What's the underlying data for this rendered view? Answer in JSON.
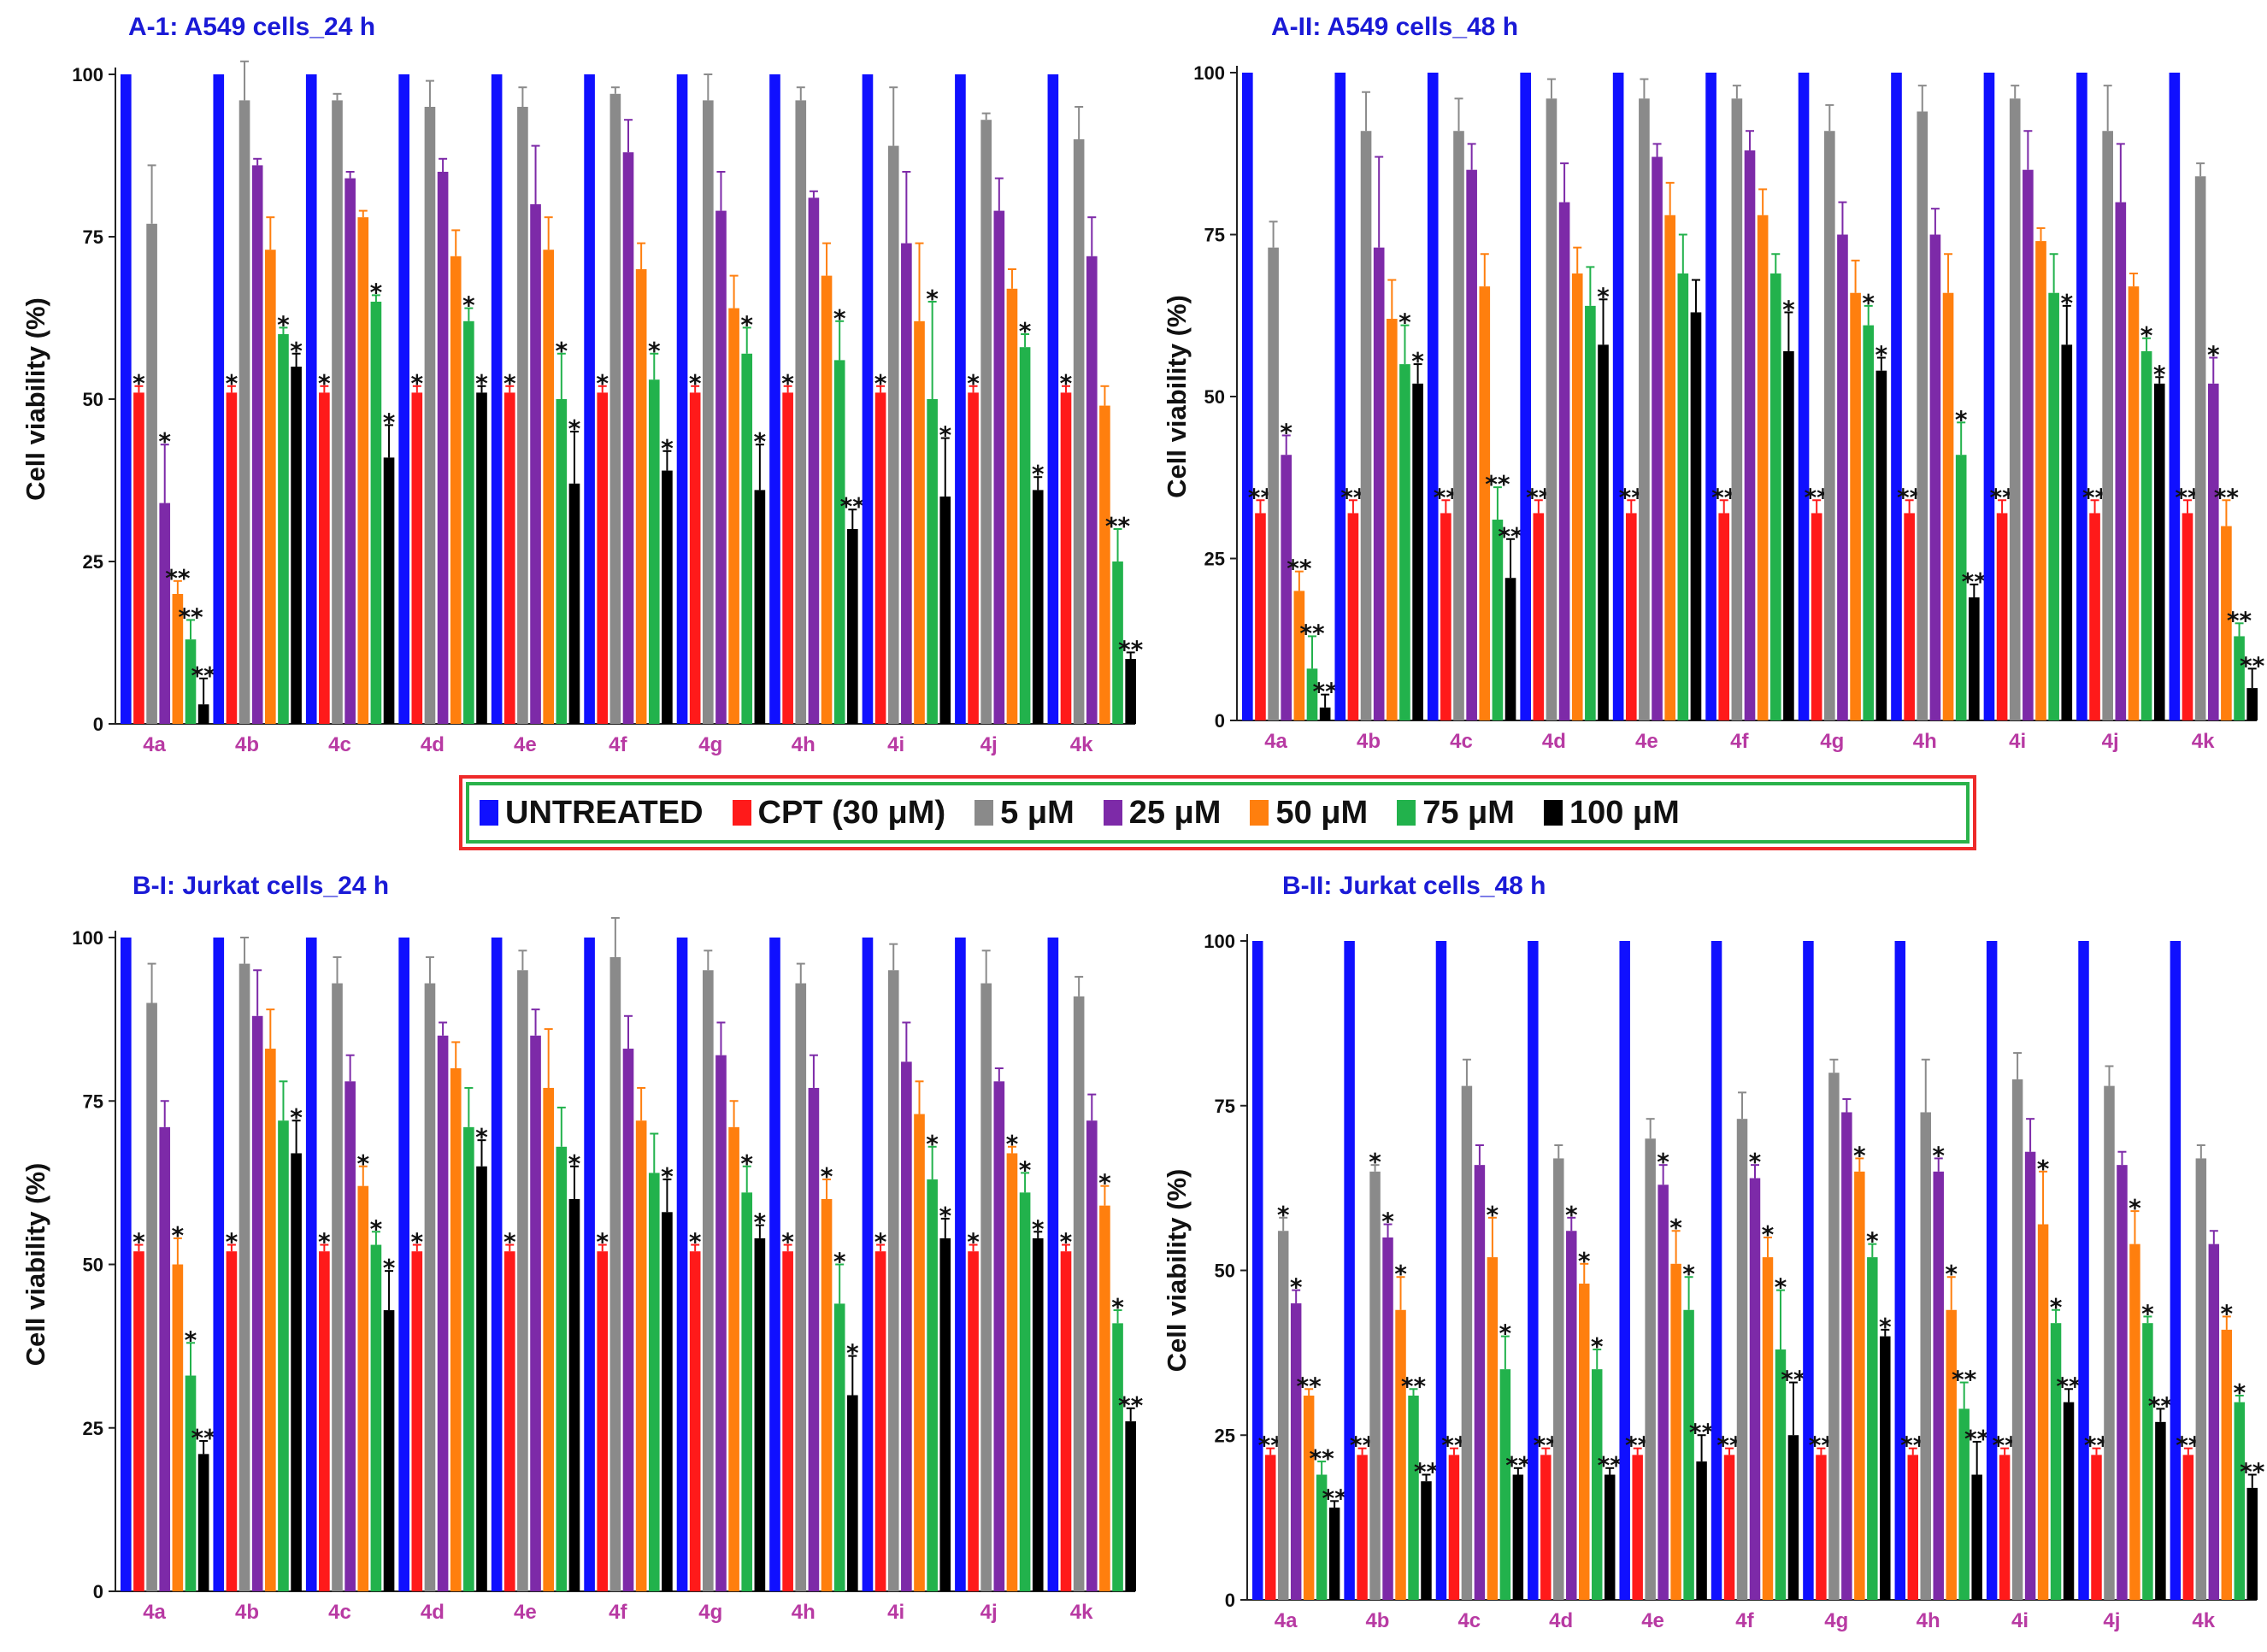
{
  "legend": {
    "items": [
      {
        "label": "UNTREATED",
        "color": "#1010ff"
      },
      {
        "label": "CPT (30 μM)",
        "color": "#ff1a1a"
      },
      {
        "label": "5 μM",
        "color": "#8a8a8a"
      },
      {
        "label": "25 μM",
        "color": "#7d2aa8"
      },
      {
        "label": "50 μM",
        "color": "#ff7f0e"
      },
      {
        "label": "75 μM",
        "color": "#22b24c"
      },
      {
        "label": "100 μM",
        "color": "#000000"
      }
    ]
  },
  "chart_data": [
    {
      "type": "bar",
      "title": "A-1: A549 cells_24 h",
      "ylabel": "Cell viability (%)",
      "ylim": [
        0,
        100
      ],
      "yticks": [
        0,
        25,
        50,
        75,
        100
      ],
      "categories": [
        "4a",
        "4b",
        "4c",
        "4d",
        "4e",
        "4f",
        "4g",
        "4h",
        "4i",
        "4j",
        "4k"
      ],
      "series": [
        {
          "name": "UNTREATED",
          "values": [
            100,
            100,
            100,
            100,
            100,
            100,
            100,
            100,
            100,
            100,
            100
          ]
        },
        {
          "name": "CPT (30 μM)",
          "values": [
            51,
            51,
            51,
            51,
            51,
            51,
            51,
            51,
            51,
            51,
            51
          ],
          "errors": [
            1,
            1,
            1,
            1,
            1,
            1,
            1,
            1,
            1,
            1,
            1
          ],
          "marks": [
            "*",
            "*",
            "*",
            "*",
            "*",
            "*",
            "*",
            "*",
            "*",
            "*",
            "*"
          ]
        },
        {
          "name": "5 μM",
          "values": [
            77,
            96,
            96,
            95,
            95,
            97,
            96,
            96,
            89,
            93,
            90
          ],
          "errors": [
            9,
            6,
            1,
            4,
            3,
            1,
            4,
            2,
            9,
            1,
            5
          ],
          "marks": [
            "",
            "",
            "",
            "",
            "",
            "",
            "",
            "",
            "",
            "",
            ""
          ]
        },
        {
          "name": "25 μM",
          "values": [
            34,
            86,
            84,
            85,
            80,
            88,
            79,
            81,
            74,
            79,
            72
          ],
          "errors": [
            9,
            1,
            1,
            2,
            9,
            5,
            6,
            1,
            11,
            5,
            6
          ],
          "marks": [
            "*",
            "",
            "",
            "",
            "",
            "",
            "",
            "",
            "",
            "",
            ""
          ]
        },
        {
          "name": "50 μM",
          "values": [
            20,
            73,
            78,
            72,
            73,
            70,
            64,
            69,
            62,
            67,
            49
          ],
          "errors": [
            2,
            5,
            1,
            4,
            5,
            4,
            5,
            5,
            12,
            3,
            3
          ],
          "marks": [
            "**",
            "",
            "",
            "",
            "",
            "",
            "",
            "",
            "",
            "",
            ""
          ]
        },
        {
          "name": "75 μM",
          "values": [
            13,
            60,
            65,
            62,
            50,
            53,
            57,
            56,
            50,
            58,
            25
          ],
          "errors": [
            3,
            1,
            1,
            2,
            7,
            4,
            4,
            6,
            15,
            2,
            5
          ],
          "marks": [
            "**",
            "*",
            "*",
            "*",
            "*",
            "*",
            "*",
            "*",
            "*",
            "*",
            "**"
          ]
        },
        {
          "name": "100 μM",
          "values": [
            3,
            55,
            41,
            51,
            37,
            39,
            36,
            30,
            35,
            36,
            10
          ],
          "errors": [
            4,
            2,
            5,
            1,
            8,
            3,
            7,
            3,
            9,
            2,
            1
          ],
          "marks": [
            "**",
            "*",
            "*",
            "*",
            "*",
            "*",
            "*",
            "**",
            "*",
            "*",
            "**"
          ]
        }
      ]
    },
    {
      "type": "bar",
      "title": "A-II: A549 cells_48 h",
      "ylabel": "Cell viability (%)",
      "ylim": [
        0,
        100
      ],
      "yticks": [
        0,
        25,
        50,
        75,
        100
      ],
      "categories": [
        "4a",
        "4b",
        "4c",
        "4d",
        "4e",
        "4f",
        "4g",
        "4h",
        "4i",
        "4j",
        "4k"
      ],
      "series": [
        {
          "name": "UNTREATED",
          "values": [
            100,
            100,
            100,
            100,
            100,
            100,
            100,
            100,
            100,
            100,
            100
          ]
        },
        {
          "name": "CPT (30 μM)",
          "values": [
            32,
            32,
            32,
            32,
            32,
            32,
            32,
            32,
            32,
            32,
            32
          ],
          "errors": [
            2,
            2,
            2,
            2,
            2,
            2,
            2,
            2,
            2,
            2,
            2
          ],
          "marks": [
            "**",
            "**",
            "**",
            "**",
            "**",
            "**",
            "**",
            "**",
            "**",
            "**",
            "**"
          ]
        },
        {
          "name": "5 μM",
          "values": [
            73,
            91,
            91,
            96,
            96,
            96,
            91,
            94,
            96,
            91,
            84
          ],
          "errors": [
            4,
            6,
            5,
            3,
            3,
            2,
            4,
            4,
            2,
            7,
            2
          ],
          "marks": [
            "",
            "",
            "",
            "",
            "",
            "",
            "",
            "",
            "",
            "",
            ""
          ]
        },
        {
          "name": "25 μM",
          "values": [
            41,
            73,
            85,
            80,
            87,
            88,
            75,
            75,
            85,
            80,
            52
          ],
          "errors": [
            3,
            14,
            4,
            6,
            2,
            3,
            5,
            4,
            6,
            9,
            4
          ],
          "marks": [
            "*",
            "",
            "",
            "",
            "",
            "",
            "",
            "",
            "",
            "",
            "*"
          ]
        },
        {
          "name": "50 μM",
          "values": [
            20,
            62,
            67,
            69,
            78,
            78,
            66,
            66,
            74,
            67,
            30
          ],
          "errors": [
            3,
            6,
            5,
            4,
            5,
            4,
            5,
            6,
            2,
            2,
            4
          ],
          "marks": [
            "**",
            "",
            "",
            "",
            "",
            "",
            "",
            "",
            "",
            "",
            "**"
          ]
        },
        {
          "name": "75 μM",
          "values": [
            8,
            55,
            31,
            64,
            69,
            69,
            61,
            41,
            66,
            57,
            13
          ],
          "errors": [
            5,
            6,
            5,
            6,
            6,
            3,
            3,
            5,
            6,
            2,
            2
          ],
          "marks": [
            "**",
            "*",
            "**",
            "",
            "",
            "",
            "*",
            "*",
            "",
            "*",
            "**"
          ]
        },
        {
          "name": "100 μM",
          "values": [
            2,
            52,
            22,
            58,
            63,
            57,
            54,
            19,
            58,
            52,
            5
          ],
          "errors": [
            2,
            3,
            6,
            7,
            5,
            6,
            2,
            2,
            6,
            1,
            3
          ],
          "marks": [
            "**",
            "*",
            "**",
            "*",
            "",
            "*",
            "*",
            "**",
            "*",
            "*",
            "**"
          ]
        }
      ]
    },
    {
      "type": "bar",
      "title": "B-I: Jurkat cells_24 h",
      "ylabel": "Cell viability (%)",
      "ylim": [
        0,
        100
      ],
      "yticks": [
        0,
        25,
        50,
        75,
        100
      ],
      "categories": [
        "4a",
        "4b",
        "4c",
        "4d",
        "4e",
        "4f",
        "4g",
        "4h",
        "4i",
        "4j",
        "4k"
      ],
      "series": [
        {
          "name": "UNTREATED",
          "values": [
            100,
            100,
            100,
            100,
            100,
            100,
            100,
            100,
            100,
            100,
            100
          ]
        },
        {
          "name": "CPT (30 μM)",
          "values": [
            52,
            52,
            52,
            52,
            52,
            52,
            52,
            52,
            52,
            52,
            52
          ],
          "errors": [
            1,
            1,
            1,
            1,
            1,
            1,
            1,
            1,
            1,
            1,
            1
          ],
          "marks": [
            "*",
            "*",
            "*",
            "*",
            "*",
            "*",
            "*",
            "*",
            "*",
            "*",
            "*"
          ]
        },
        {
          "name": "5 μM",
          "values": [
            90,
            96,
            93,
            93,
            95,
            97,
            95,
            93,
            95,
            93,
            91
          ],
          "errors": [
            6,
            4,
            4,
            4,
            3,
            6,
            3,
            3,
            4,
            5,
            3
          ],
          "marks": [
            "",
            "",
            "",
            "",
            "",
            "",
            "",
            "",
            "",
            "",
            ""
          ]
        },
        {
          "name": "25 μM",
          "values": [
            71,
            88,
            78,
            85,
            85,
            83,
            82,
            77,
            81,
            78,
            72
          ],
          "errors": [
            4,
            7,
            4,
            2,
            4,
            5,
            5,
            5,
            6,
            2,
            4
          ],
          "marks": [
            "",
            "",
            "",
            "",
            "",
            "",
            "",
            "",
            "",
            "",
            ""
          ]
        },
        {
          "name": "50 μM",
          "values": [
            50,
            83,
            62,
            80,
            77,
            72,
            71,
            60,
            73,
            67,
            59
          ],
          "errors": [
            4,
            6,
            3,
            4,
            9,
            5,
            4,
            3,
            5,
            1,
            3
          ],
          "marks": [
            "*",
            "",
            "*",
            "",
            "",
            "",
            "",
            "*",
            "",
            "*",
            "*"
          ]
        },
        {
          "name": "75 μM",
          "values": [
            33,
            72,
            53,
            71,
            68,
            64,
            61,
            44,
            63,
            61,
            41
          ],
          "errors": [
            5,
            6,
            2,
            6,
            6,
            6,
            4,
            6,
            5,
            3,
            2
          ],
          "marks": [
            "*",
            "",
            "*",
            "",
            "",
            "",
            "*",
            "*",
            "*",
            "*",
            "*"
          ]
        },
        {
          "name": "100 μM",
          "values": [
            21,
            67,
            43,
            65,
            60,
            58,
            54,
            30,
            54,
            54,
            26
          ],
          "errors": [
            2,
            5,
            6,
            4,
            5,
            5,
            2,
            6,
            3,
            1,
            2
          ],
          "marks": [
            "**",
            "*",
            "*",
            "*",
            "*",
            "*",
            "*",
            "*",
            "*",
            "*",
            "**"
          ]
        }
      ]
    },
    {
      "type": "bar",
      "title": "B-II: Jurkat cells_48 h",
      "ylabel": "Cell viability (%)",
      "ylim": [
        0,
        100
      ],
      "yticks": [
        0,
        25,
        50,
        75,
        100
      ],
      "categories": [
        "4a",
        "4b",
        "4c",
        "4d",
        "4e",
        "4f",
        "4g",
        "4h",
        "4i",
        "4j",
        "4k"
      ],
      "series": [
        {
          "name": "UNTREATED",
          "values": [
            100,
            100,
            100,
            100,
            100,
            100,
            100,
            100,
            100,
            100,
            100
          ]
        },
        {
          "name": "CPT (30 μM)",
          "values": [
            22,
            22,
            22,
            22,
            22,
            22,
            22,
            22,
            22,
            22,
            22
          ],
          "errors": [
            1,
            1,
            1,
            1,
            1,
            1,
            1,
            1,
            1,
            1,
            1
          ],
          "marks": [
            "**",
            "**",
            "**",
            "**",
            "**",
            "**",
            "**",
            "**",
            "**",
            "**",
            "**"
          ]
        },
        {
          "name": "5 μM",
          "values": [
            56,
            65,
            78,
            67,
            70,
            73,
            80,
            74,
            79,
            78,
            67
          ],
          "errors": [
            2,
            1,
            4,
            2,
            3,
            4,
            2,
            8,
            4,
            3,
            2
          ],
          "marks": [
            "*",
            "*",
            "",
            "",
            "",
            "",
            "",
            "",
            "",
            "",
            ""
          ]
        },
        {
          "name": "25 μM",
          "values": [
            45,
            55,
            66,
            56,
            63,
            64,
            74,
            65,
            68,
            66,
            54
          ],
          "errors": [
            2,
            2,
            3,
            2,
            3,
            2,
            2,
            2,
            5,
            2,
            2
          ],
          "marks": [
            "*",
            "*",
            "",
            "*",
            "*",
            "*",
            "",
            "*",
            "",
            "",
            ""
          ]
        },
        {
          "name": "50 μM",
          "values": [
            31,
            44,
            52,
            48,
            51,
            52,
            65,
            44,
            57,
            54,
            41
          ],
          "errors": [
            1,
            5,
            6,
            3,
            5,
            3,
            2,
            5,
            8,
            5,
            2
          ],
          "marks": [
            "**",
            "*",
            "*",
            "*",
            "*",
            "*",
            "*",
            "*",
            "*",
            "*",
            "*"
          ]
        },
        {
          "name": "75 μM",
          "values": [
            19,
            31,
            35,
            35,
            44,
            38,
            52,
            29,
            42,
            42,
            30
          ],
          "errors": [
            2,
            1,
            5,
            3,
            5,
            9,
            2,
            4,
            2,
            1,
            1
          ],
          "marks": [
            "**",
            "**",
            "*",
            "*",
            "*",
            "*",
            "*",
            "**",
            "*",
            "*",
            "*"
          ]
        },
        {
          "name": "100 μM",
          "values": [
            14,
            18,
            19,
            19,
            21,
            25,
            40,
            19,
            30,
            27,
            17
          ],
          "errors": [
            1,
            1,
            1,
            1,
            4,
            8,
            1,
            5,
            2,
            2,
            2
          ],
          "marks": [
            "**",
            "**",
            "**",
            "**",
            "**",
            "**",
            "*",
            "**",
            "**",
            "**",
            "**"
          ]
        }
      ]
    }
  ]
}
